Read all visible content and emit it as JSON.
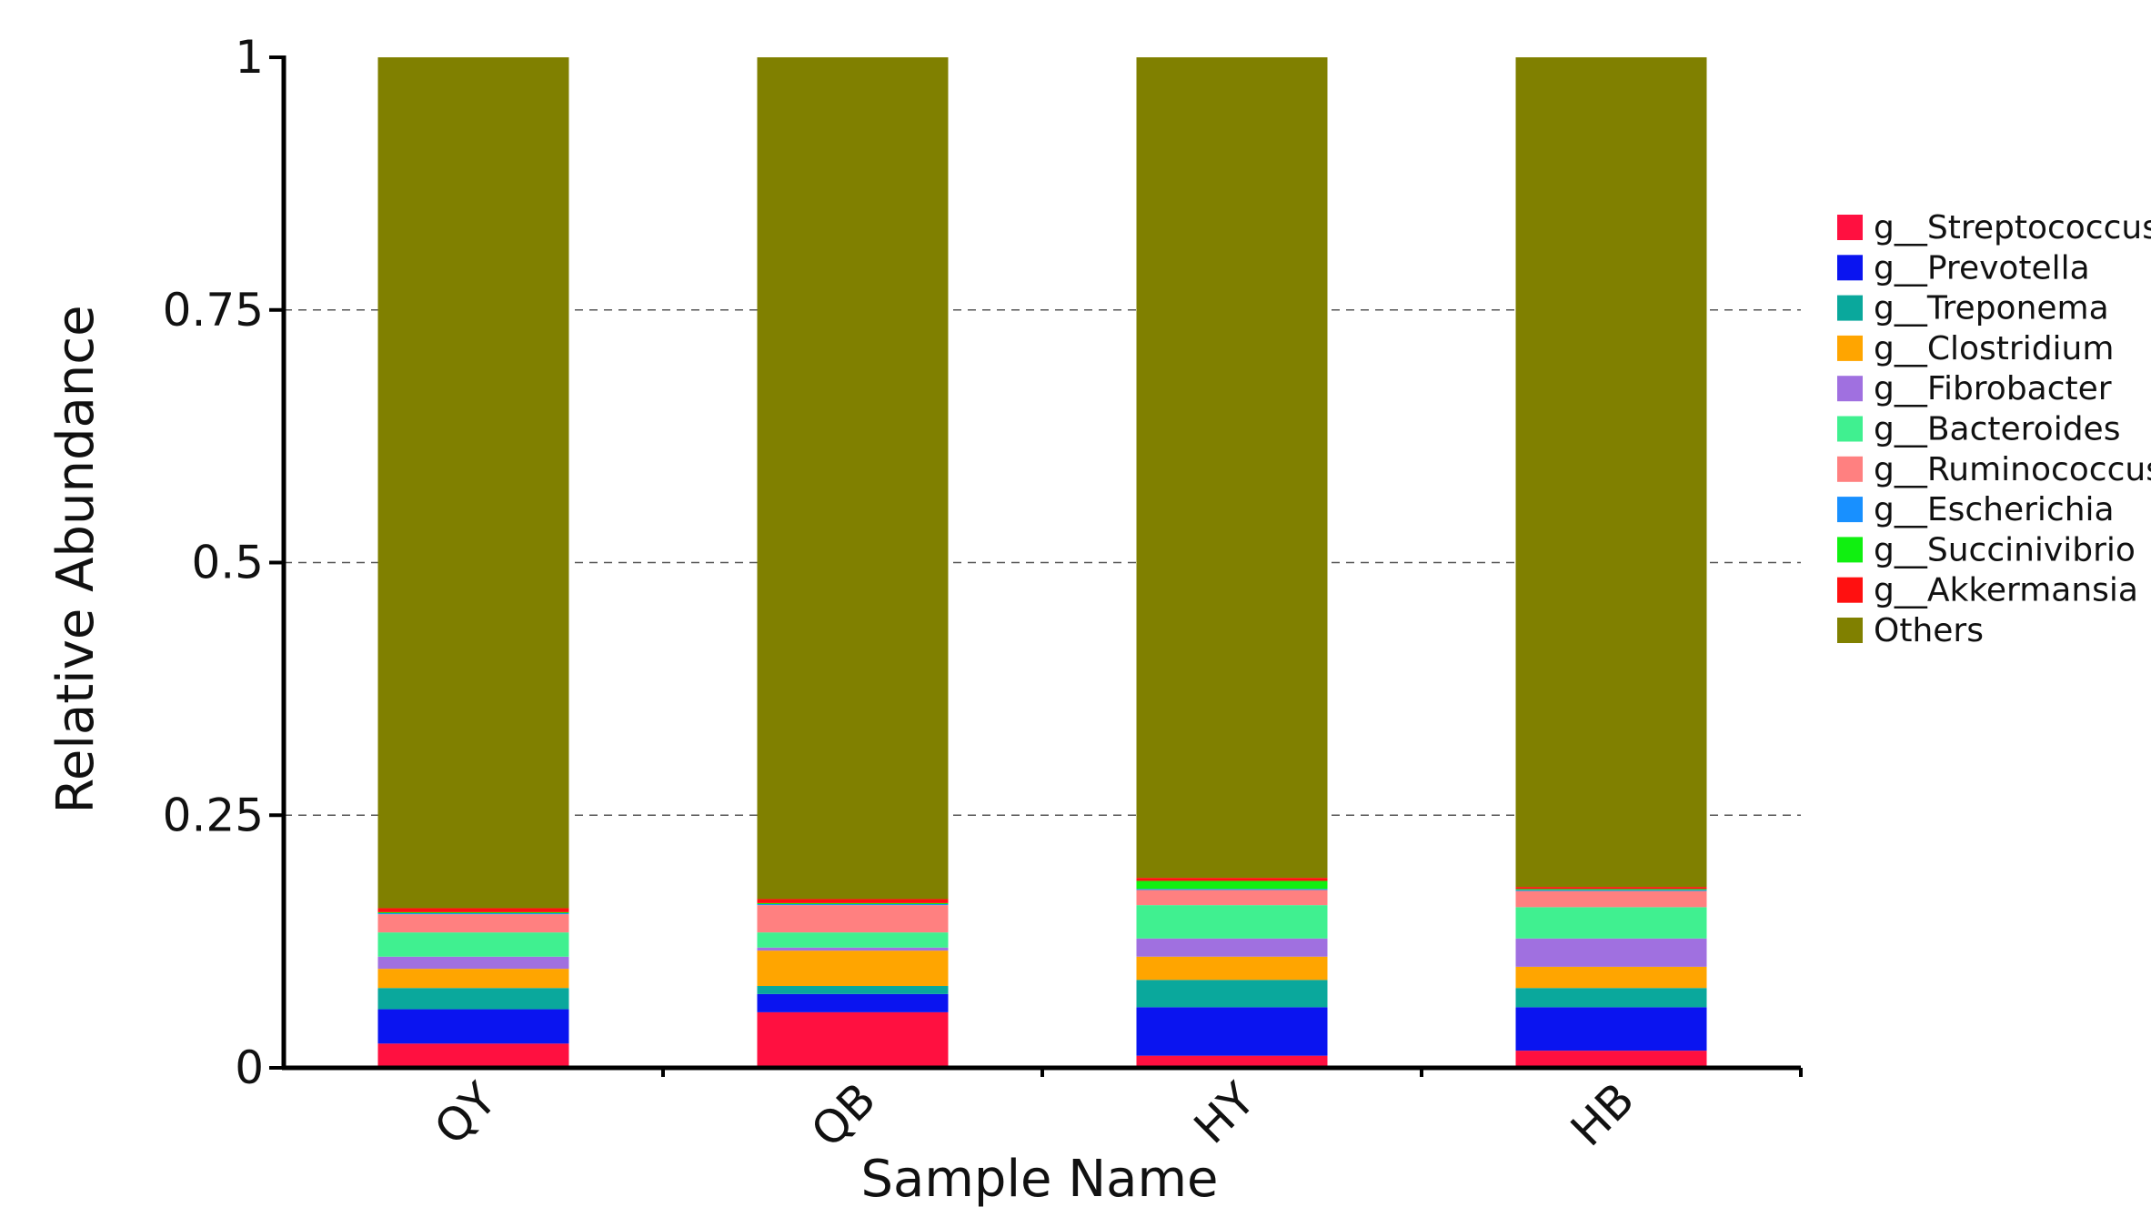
{
  "chart_data": {
    "type": "bar",
    "stacked": true,
    "title": "",
    "xlabel": "Sample Name",
    "ylabel": "Relative Abundance",
    "ylim": [
      0,
      1
    ],
    "yticks": [
      0,
      0.25,
      0.5,
      0.75,
      1
    ],
    "ytick_labels": [
      "0",
      "0.25",
      "0.5",
      "0.75",
      "1"
    ],
    "grid": "horizontal dashed",
    "legend_position": "right",
    "categories": [
      "QY",
      "QB",
      "HY",
      "HB"
    ],
    "series": [
      {
        "name": "g__Streptococcus",
        "color": "#ff1040",
        "values": [
          0.024,
          0.055,
          0.012,
          0.017
        ]
      },
      {
        "name": "g__Prevotella",
        "color": "#0a14f0",
        "values": [
          0.034,
          0.018,
          0.048,
          0.043
        ]
      },
      {
        "name": "g__Treponema",
        "color": "#0aa89c",
        "values": [
          0.021,
          0.008,
          0.027,
          0.019
        ]
      },
      {
        "name": "g__Clostridium",
        "color": "#ffa500",
        "values": [
          0.019,
          0.035,
          0.023,
          0.021
        ]
      },
      {
        "name": "g__Fibrobacter",
        "color": "#a070e0",
        "values": [
          0.012,
          0.003,
          0.018,
          0.028
        ]
      },
      {
        "name": "g__Bacteroides",
        "color": "#40f090",
        "values": [
          0.024,
          0.015,
          0.033,
          0.031
        ]
      },
      {
        "name": "g__Ruminococcus",
        "color": "#ff8080",
        "values": [
          0.018,
          0.027,
          0.015,
          0.016
        ]
      },
      {
        "name": "g__Escherichia",
        "color": "#1890ff",
        "values": [
          0.001,
          0.001,
          0.001,
          0.001
        ]
      },
      {
        "name": "g__Succinivibrio",
        "color": "#10f010",
        "values": [
          0.001,
          0.001,
          0.008,
          0.001
        ]
      },
      {
        "name": "g__Akkermansia",
        "color": "#ff1010",
        "values": [
          0.004,
          0.004,
          0.003,
          0.002
        ]
      },
      {
        "name": "Others",
        "color": "#808000",
        "values": [
          0.842,
          0.833,
          0.812,
          0.821
        ]
      }
    ]
  }
}
